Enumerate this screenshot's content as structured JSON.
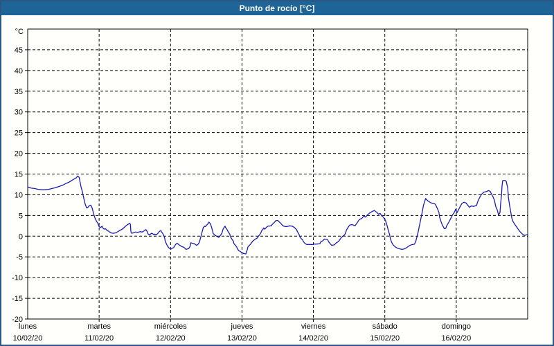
{
  "window": {
    "title": "Punto de rocío [°C]"
  },
  "colors": {
    "titlebar_bg": "#1e6496",
    "titlebar_text": "#ffffff",
    "frame_border": "#2a5784",
    "chart_bg": "#fffffb",
    "plot_border": "#000000",
    "grid": "#000000",
    "line": "#1a1ab8",
    "label_text": "#000000"
  },
  "chart_data": {
    "type": "line",
    "title": "Punto de rocío [°C]",
    "unit_label": "°C",
    "ylim": [
      -20,
      50
    ],
    "yticks": [
      45,
      40,
      35,
      30,
      25,
      20,
      15,
      10,
      5,
      0,
      -5,
      -10,
      -15,
      -20
    ],
    "grid": "dashed",
    "legend": "none",
    "hours_per_day": 24,
    "x_days": [
      {
        "name": "lunes",
        "date": "10/02/20"
      },
      {
        "name": "martes",
        "date": "11/02/20"
      },
      {
        "name": "miércoles",
        "date": "12/02/20"
      },
      {
        "name": "jueves",
        "date": "13/02/20"
      },
      {
        "name": "viernes",
        "date": "14/02/20"
      },
      {
        "name": "sábado",
        "date": "15/02/20"
      },
      {
        "name": "domingo",
        "date": "16/02/20"
      }
    ],
    "series": [
      {
        "name": "Punto de rocío",
        "color": "#1a1ab8",
        "points": [
          [
            0,
            11.9
          ],
          [
            1.2,
            11.6
          ],
          [
            2.3,
            11.5
          ],
          [
            3.5,
            11.3
          ],
          [
            4.7,
            11.2
          ],
          [
            5.8,
            11.2
          ],
          [
            7,
            11.3
          ],
          [
            8.2,
            11.5
          ],
          [
            9.3,
            11.7
          ],
          [
            10.5,
            12
          ],
          [
            11.7,
            12.3
          ],
          [
            12.8,
            12.7
          ],
          [
            14,
            13.1
          ],
          [
            15.1,
            13.6
          ],
          [
            16.3,
            14.1
          ],
          [
            16.8,
            14.5
          ],
          [
            17.3,
            14.2
          ],
          [
            17.9,
            12
          ],
          [
            18.4,
            10.6
          ],
          [
            18.9,
            9
          ],
          [
            19.3,
            7.8
          ],
          [
            19.8,
            6.8
          ],
          [
            20.3,
            7
          ],
          [
            20.7,
            7.4
          ],
          [
            21.2,
            7.5
          ],
          [
            21.7,
            6.7
          ],
          [
            22.1,
            5.5
          ],
          [
            22.6,
            4.4
          ],
          [
            23.1,
            3.6
          ],
          [
            23.5,
            3.2
          ],
          [
            24,
            2.3
          ],
          [
            24.5,
            2.1
          ],
          [
            25,
            2.4
          ],
          [
            25.2,
            2
          ],
          [
            25.7,
            1.7
          ],
          [
            26.1,
            1.8
          ],
          [
            26.4,
            1.6
          ],
          [
            26.8,
            1.3
          ],
          [
            27.3,
            1.2
          ],
          [
            27.5,
            1
          ],
          [
            28,
            0.8
          ],
          [
            28.7,
            0.7
          ],
          [
            29.6,
            0.8
          ],
          [
            30.3,
            1.1
          ],
          [
            31,
            1.4
          ],
          [
            32,
            1.8
          ],
          [
            32.7,
            2.3
          ],
          [
            33.4,
            2.7
          ],
          [
            33.8,
            2.9
          ],
          [
            34.3,
            3.1
          ],
          [
            34.5,
            2.8
          ],
          [
            34.7,
            1
          ],
          [
            35,
            0.7
          ],
          [
            35.5,
            0.8
          ],
          [
            36.2,
            1
          ],
          [
            36.9,
            0.9
          ],
          [
            37.8,
            1.1
          ],
          [
            38.5,
            1
          ],
          [
            39.2,
            1.3
          ],
          [
            39.7,
            1.6
          ],
          [
            40.1,
            1.2
          ],
          [
            40.4,
            0.6
          ],
          [
            40.8,
            0.3
          ],
          [
            41.3,
            0.5
          ],
          [
            41.5,
            0.7
          ],
          [
            42,
            0.6
          ],
          [
            42.5,
            0.3
          ],
          [
            42.7,
            0.5
          ],
          [
            43.2,
            0.3
          ],
          [
            43.6,
            0.6
          ],
          [
            43.9,
            0.8
          ],
          [
            44.3,
            1.2
          ],
          [
            44.8,
            1.3
          ],
          [
            45,
            1
          ],
          [
            45.5,
            0.5
          ],
          [
            46,
            -0.4
          ],
          [
            46.2,
            -1.2
          ],
          [
            46.7,
            -2
          ],
          [
            47.1,
            -2.5
          ],
          [
            47.4,
            -2.8
          ],
          [
            47.8,
            -3
          ],
          [
            48.3,
            -3.1
          ],
          [
            48.5,
            -2.9
          ],
          [
            49,
            -2.8
          ],
          [
            49.7,
            -2
          ],
          [
            50.2,
            -1.7
          ],
          [
            50.9,
            -2.1
          ],
          [
            51.8,
            -2.5
          ],
          [
            52.5,
            -2.7
          ],
          [
            53.2,
            -3.2
          ],
          [
            54.1,
            -3
          ],
          [
            54.6,
            -2.4
          ],
          [
            54.8,
            -1.6
          ],
          [
            55.3,
            -1.7
          ],
          [
            56,
            -1.8
          ],
          [
            56.7,
            -2.2
          ],
          [
            57.2,
            -2
          ],
          [
            57.6,
            -1.6
          ],
          [
            57.9,
            -0.9
          ],
          [
            58.3,
            0.2
          ],
          [
            58.7,
            1.3
          ],
          [
            59,
            2.1
          ],
          [
            59.5,
            2.4
          ],
          [
            59.7,
            2.3
          ],
          [
            60.2,
            2.7
          ],
          [
            60.7,
            3.1
          ],
          [
            60.9,
            3.4
          ],
          [
            61.4,
            3
          ],
          [
            61.8,
            2.1
          ],
          [
            62.1,
            1.3
          ],
          [
            62.3,
            0.7
          ],
          [
            62.8,
            0.3
          ],
          [
            63.2,
            0.1
          ],
          [
            63.7,
            -0.1
          ],
          [
            64.2,
            -0.3
          ],
          [
            64.4,
            -0.1
          ],
          [
            64.9,
            0.3
          ],
          [
            65.3,
            0.8
          ],
          [
            65.6,
            1.6
          ],
          [
            66,
            2.1
          ],
          [
            66.3,
            2.4
          ],
          [
            66.5,
            2.1
          ],
          [
            67,
            1.6
          ],
          [
            67.4,
            1
          ],
          [
            67.9,
            0.5
          ],
          [
            68.1,
            -0.1
          ],
          [
            68.6,
            -0.7
          ],
          [
            69.1,
            -1.2
          ],
          [
            69.3,
            -1.8
          ],
          [
            69.8,
            -2.2
          ],
          [
            70.2,
            -2.6
          ],
          [
            70.5,
            -3.1
          ],
          [
            70.9,
            -3.5
          ],
          [
            71.4,
            -3.7
          ],
          [
            72,
            -4
          ],
          [
            72.6,
            -4.2
          ],
          [
            73.3,
            -4.3
          ],
          [
            73.8,
            -3.2
          ],
          [
            74,
            -2.6
          ],
          [
            74.9,
            -1.9
          ],
          [
            75.6,
            -1.2
          ],
          [
            76.3,
            -0.8
          ],
          [
            77.2,
            -0.4
          ],
          [
            77.5,
            0
          ],
          [
            78,
            0.4
          ],
          [
            78.4,
            0.9
          ],
          [
            78.6,
            1.3
          ],
          [
            79.1,
            1.7
          ],
          [
            79.3,
            2
          ],
          [
            79.6,
            1.7
          ],
          [
            79.8,
            1.8
          ],
          [
            80.3,
            2.2
          ],
          [
            80.7,
            2.4
          ],
          [
            81.9,
            2.5
          ],
          [
            82.1,
            2.8
          ],
          [
            82.6,
            3.1
          ],
          [
            83.1,
            3.5
          ],
          [
            83.3,
            3.7
          ],
          [
            83.8,
            3.8
          ],
          [
            84.2,
            3.7
          ],
          [
            84.4,
            3.5
          ],
          [
            84.9,
            3.2
          ],
          [
            85.4,
            2.8
          ],
          [
            85.6,
            2.6
          ],
          [
            86.1,
            2.4
          ],
          [
            86.8,
            2.3
          ],
          [
            87.7,
            2.4
          ],
          [
            87.9,
            2.5
          ],
          [
            88.9,
            2.4
          ],
          [
            89.6,
            2.1
          ],
          [
            90,
            1.8
          ],
          [
            90.3,
            1.6
          ],
          [
            90.7,
            1
          ],
          [
            91.2,
            0.4
          ],
          [
            91.4,
            -0.1
          ],
          [
            91.9,
            -0.6
          ],
          [
            92.4,
            -0.9
          ],
          [
            92.6,
            -1.3
          ],
          [
            93.1,
            -1.7
          ],
          [
            93.5,
            -1.9
          ],
          [
            93.8,
            -2
          ],
          [
            94.5,
            -2
          ],
          [
            95.4,
            -2
          ],
          [
            96,
            -2
          ],
          [
            96.3,
            -1.9
          ],
          [
            97.2,
            -1.9
          ],
          [
            98.2,
            -1.8
          ],
          [
            98.4,
            -1.5
          ],
          [
            98.7,
            -1.2
          ],
          [
            99,
            -1.2
          ],
          [
            99.7,
            -0.7
          ],
          [
            100.7,
            -0.8
          ],
          [
            101.3,
            -1.5
          ],
          [
            102.1,
            -2.2
          ],
          [
            103,
            -2.1
          ],
          [
            103.7,
            -1.6
          ],
          [
            104.4,
            -1.3
          ],
          [
            105.3,
            -0.4
          ],
          [
            106,
            0.1
          ],
          [
            106.5,
            0.3
          ],
          [
            107.2,
            1.6
          ],
          [
            107.9,
            2.4
          ],
          [
            108.3,
            2.7
          ],
          [
            109,
            2.8
          ],
          [
            110,
            2.5
          ],
          [
            110.7,
            3.2
          ],
          [
            111.4,
            4
          ],
          [
            112.3,
            4.3
          ],
          [
            113,
            4.9
          ],
          [
            113.5,
            4.6
          ],
          [
            114.2,
            5.2
          ],
          [
            114.9,
            5.6
          ],
          [
            115.8,
            6
          ],
          [
            116.5,
            6.2
          ],
          [
            117.2,
            5.8
          ],
          [
            117.9,
            5.3
          ],
          [
            118.4,
            5.5
          ],
          [
            119.1,
            4.8
          ],
          [
            119.5,
            4.6
          ],
          [
            120.2,
            3.8
          ],
          [
            120.7,
            2.7
          ],
          [
            121.2,
            1.3
          ],
          [
            121.6,
            0.4
          ],
          [
            121.9,
            -0.7
          ],
          [
            122.3,
            -1.5
          ],
          [
            122.8,
            -2.1
          ],
          [
            123.5,
            -2.6
          ],
          [
            124.2,
            -2.9
          ],
          [
            125.1,
            -3.1
          ],
          [
            125.8,
            -3.2
          ],
          [
            126.5,
            -3.1
          ],
          [
            127.5,
            -2.7
          ],
          [
            128.2,
            -2.3
          ],
          [
            128.8,
            -2.1
          ],
          [
            129.5,
            -2
          ],
          [
            130,
            -1.9
          ],
          [
            130.5,
            -1
          ],
          [
            131.2,
            1
          ],
          [
            131.9,
            3.5
          ],
          [
            132.6,
            6
          ],
          [
            133,
            7.5
          ],
          [
            133.7,
            9.1
          ],
          [
            134.2,
            8.7
          ],
          [
            134.7,
            8.4
          ],
          [
            135.4,
            8.1
          ],
          [
            136.1,
            7.9
          ],
          [
            136.8,
            7.8
          ],
          [
            137.2,
            7.4
          ],
          [
            137.7,
            6.6
          ],
          [
            138.2,
            5.7
          ],
          [
            138.4,
            4.6
          ],
          [
            138.9,
            3.5
          ],
          [
            139.3,
            2.7
          ],
          [
            140,
            1.8
          ],
          [
            140.5,
            1.9
          ],
          [
            140.7,
            2.4
          ],
          [
            141.2,
            3
          ],
          [
            141.6,
            3.5
          ],
          [
            142.1,
            4.2
          ],
          [
            142.8,
            5.2
          ],
          [
            143.3,
            5.7
          ],
          [
            143.5,
            6
          ],
          [
            143.8,
            6.5
          ],
          [
            144,
            6.1
          ],
          [
            144.2,
            5.6
          ],
          [
            144.7,
            6.3
          ],
          [
            145.2,
            7
          ],
          [
            145.9,
            7.9
          ],
          [
            146.6,
            8.2
          ],
          [
            147.3,
            8
          ],
          [
            147.7,
            7.6
          ],
          [
            148.4,
            7
          ],
          [
            149.1,
            7.3
          ],
          [
            149.8,
            7.2
          ],
          [
            150.8,
            7.4
          ],
          [
            151.2,
            8.3
          ],
          [
            151.9,
            9.4
          ],
          [
            152.6,
            10.2
          ],
          [
            153.3,
            10.6
          ],
          [
            154.2,
            10.8
          ],
          [
            154.9,
            11
          ],
          [
            155.4,
            10.8
          ],
          [
            155.9,
            10.1
          ],
          [
            156.3,
            9.6
          ],
          [
            156.8,
            8.7
          ],
          [
            157.3,
            7.1
          ],
          [
            157.8,
            6.3
          ],
          [
            158.2,
            5.1
          ],
          [
            158.7,
            5.7
          ],
          [
            158.9,
            7.7
          ],
          [
            159.2,
            10
          ],
          [
            159.4,
            12.2
          ],
          [
            159.6,
            13.4
          ],
          [
            160.3,
            13.5
          ],
          [
            160.8,
            13.2
          ],
          [
            161.3,
            11.6
          ],
          [
            161.5,
            9.4
          ],
          [
            162,
            7.1
          ],
          [
            162.4,
            5.5
          ],
          [
            162.7,
            4.3
          ],
          [
            163.1,
            3.5
          ],
          [
            163.8,
            2.7
          ],
          [
            164.7,
            1.8
          ],
          [
            165.4,
            1.1
          ],
          [
            166.1,
            0.6
          ],
          [
            166.6,
            0.3
          ],
          [
            167,
            0.2
          ],
          [
            167.5,
            0.3
          ],
          [
            168,
            0.4
          ]
        ]
      }
    ]
  }
}
